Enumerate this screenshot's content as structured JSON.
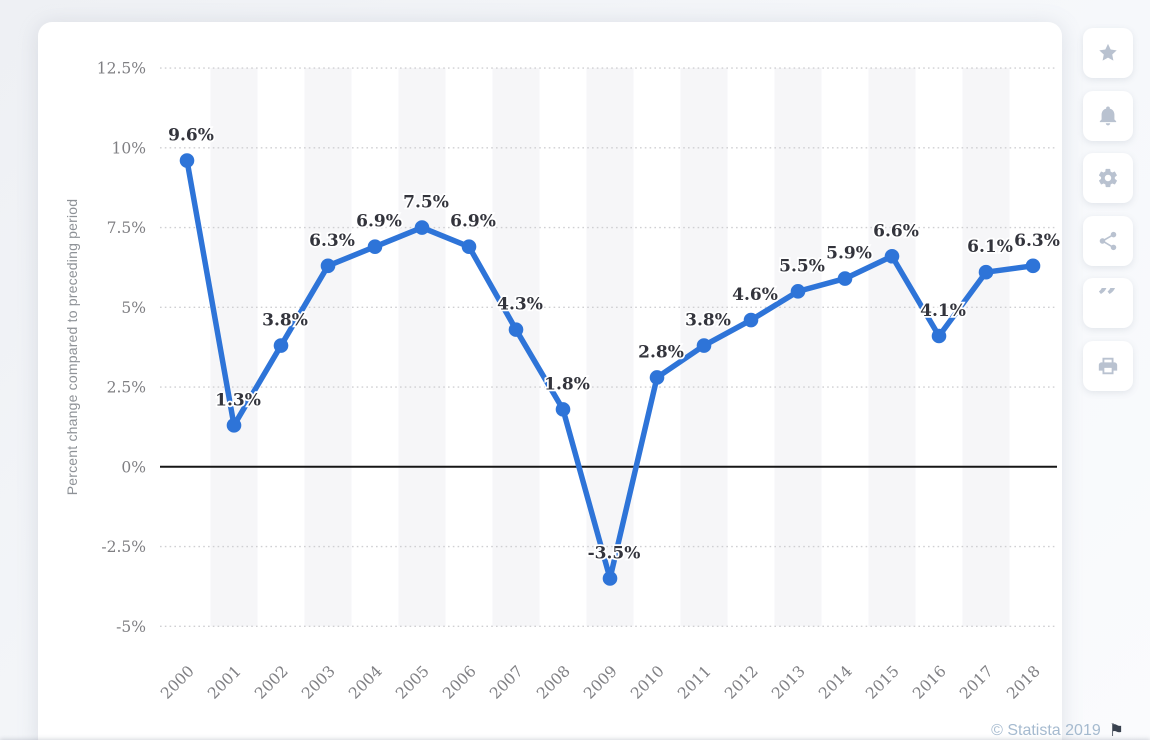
{
  "chart_data": {
    "type": "line",
    "categories": [
      "2000",
      "2001",
      "2002",
      "2003",
      "2004",
      "2005",
      "2006",
      "2007",
      "2008",
      "2009",
      "2010",
      "2011",
      "2012",
      "2013",
      "2014",
      "2015",
      "2016",
      "2017",
      "2018"
    ],
    "values": [
      9.6,
      1.3,
      3.8,
      6.3,
      6.9,
      7.5,
      6.9,
      4.3,
      1.8,
      -3.5,
      2.8,
      3.8,
      4.6,
      5.5,
      5.9,
      6.6,
      4.1,
      6.1,
      6.3
    ],
    "point_labels": [
      "9.6%",
      "1.3%",
      "3.8%",
      "6.3%",
      "6.9%",
      "7.5%",
      "6.9%",
      "4.3%",
      "1.8%",
      "-3.5%",
      "2.8%",
      "3.8%",
      "4.6%",
      "5.5%",
      "5.9%",
      "6.6%",
      "4.1%",
      "6.1%",
      "6.3%"
    ],
    "ylabel": "Percent change compared to preceding period",
    "xlabel": "",
    "title": "",
    "ylim": [
      -5,
      12.5
    ],
    "yticks": [
      {
        "v": 12.5,
        "label": "12.5%"
      },
      {
        "v": 10,
        "label": "10%"
      },
      {
        "v": 7.5,
        "label": "7.5%"
      },
      {
        "v": 5,
        "label": "5%"
      },
      {
        "v": 2.5,
        "label": "2.5%"
      },
      {
        "v": 0,
        "label": "0%"
      },
      {
        "v": -2.5,
        "label": "-2.5%"
      },
      {
        "v": -5,
        "label": "-5%"
      }
    ],
    "grid": "horizontal-dotted, zero-baseline-solid, alternating vertical bands on odd years",
    "legend": "none",
    "colors": {
      "line": "#2e74d8",
      "band": "#f6f6f8",
      "gridline": "#cfcfd2",
      "zero_line": "#161616",
      "data_label": "#33343c",
      "tick_label": "#7f7f83",
      "axis_title": "#8e9297"
    }
  },
  "toolbar": {
    "items": [
      {
        "name": "favorite",
        "icon": "star-icon"
      },
      {
        "name": "notifications",
        "icon": "bell-icon"
      },
      {
        "name": "settings",
        "icon": "gear-icon"
      },
      {
        "name": "share",
        "icon": "share-icon"
      },
      {
        "name": "cite",
        "icon": "quote-icon"
      },
      {
        "name": "print",
        "icon": "print-icon"
      }
    ],
    "icon_color": "#b9c2d0"
  },
  "footer": {
    "copyright": "© Statista 2019",
    "copyright_color": "#a5bacf",
    "flag_icon": "⚑"
  }
}
